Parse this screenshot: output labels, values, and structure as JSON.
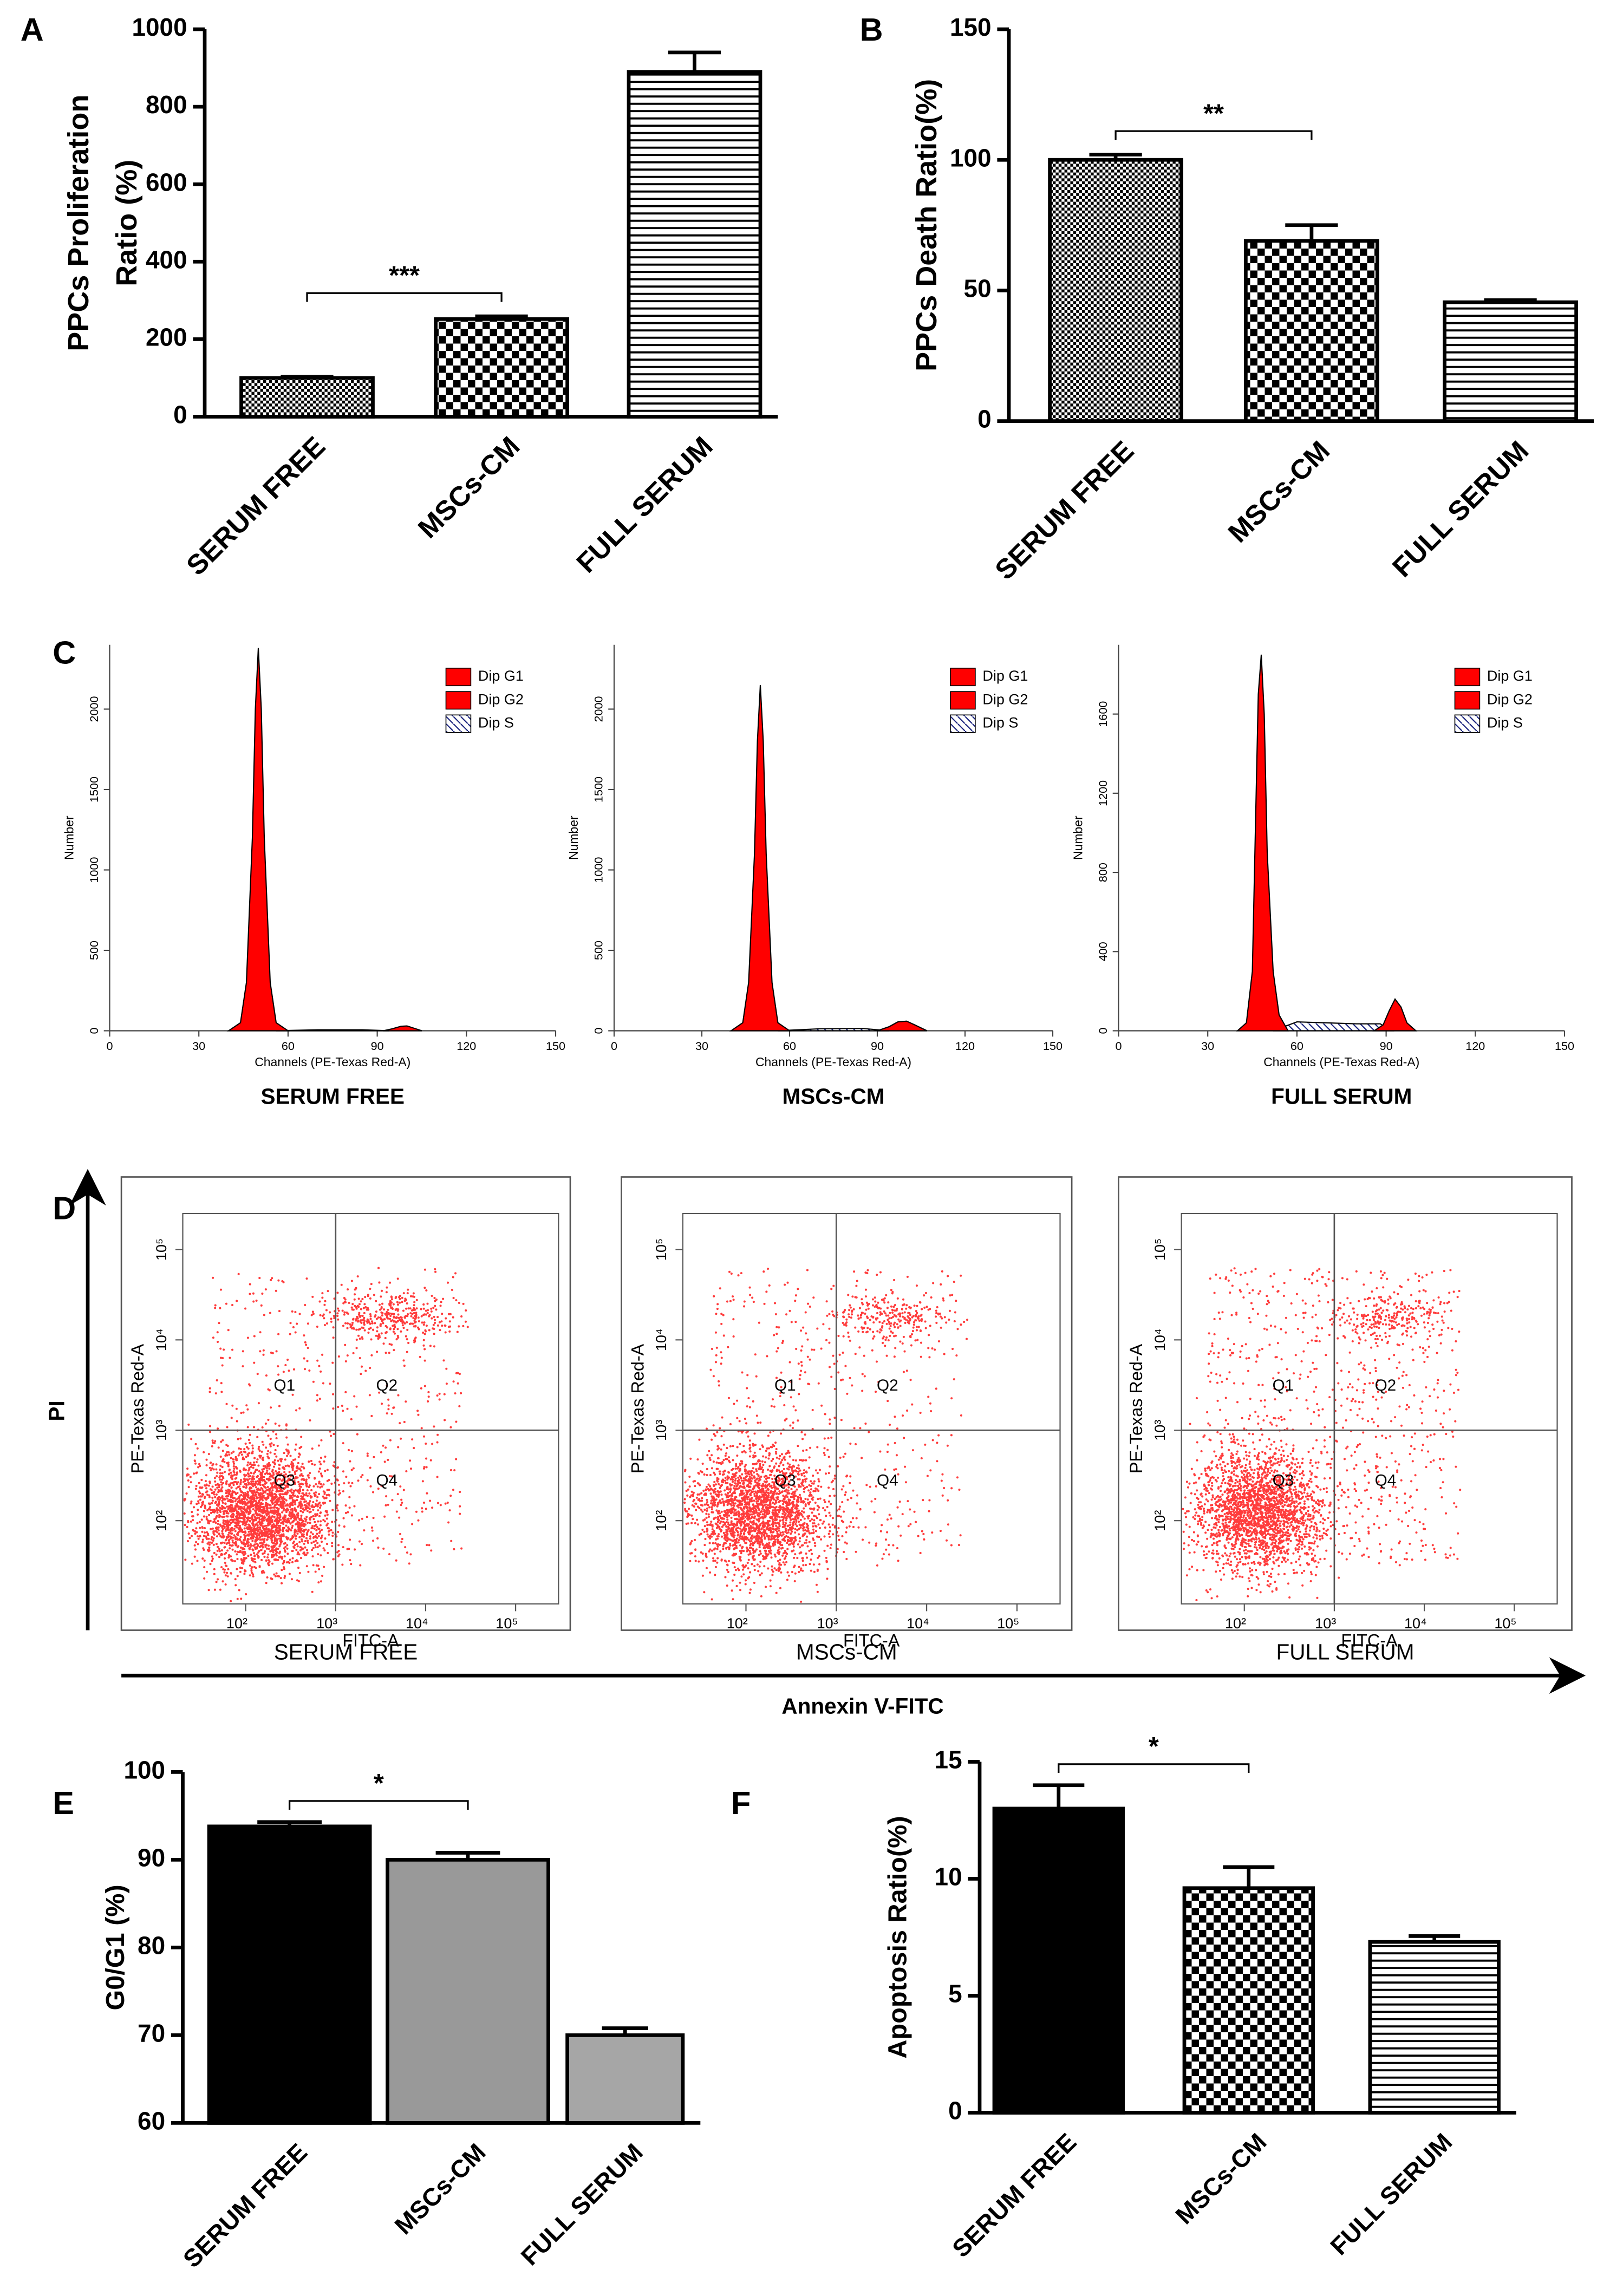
{
  "chart_data": [
    {
      "type": "bar",
      "label": "A",
      "ylabel": [
        "PPCs Proliferation",
        "Ratio (%)"
      ],
      "categories": [
        "SERUM FREE",
        "MSCs-CM",
        "FULL SERUM"
      ],
      "values": [
        100,
        252,
        890
      ],
      "errors": [
        3,
        7,
        50
      ],
      "fills": [
        "crosshatch",
        "checker",
        "hlines"
      ],
      "ylim": [
        0,
        1000
      ],
      "yticks": [
        0,
        200,
        400,
        600,
        800,
        1000
      ],
      "significance": [
        {
          "label": "***",
          "from": 0,
          "to": 1
        }
      ]
    },
    {
      "type": "bar",
      "label": "B",
      "ylabel": [
        "PPCs Death Ratio(%)"
      ],
      "categories": [
        "SERUM FREE",
        "MSCs-CM",
        "FULL SERUM"
      ],
      "values": [
        100,
        69,
        45.5
      ],
      "errors": [
        2,
        6,
        0.8
      ],
      "fills": [
        "crosshatch",
        "checker",
        "hlines"
      ],
      "ylim": [
        0,
        150
      ],
      "yticks": [
        0,
        50,
        100,
        150
      ],
      "significance": [
        {
          "label": "**",
          "from": 0,
          "to": 1
        }
      ]
    },
    {
      "type": "flow_histogram",
      "label": "C",
      "xlabel": "Channels (PE-Texas Red-A)",
      "ylabel": "Number",
      "xlim": [
        0,
        150
      ],
      "xticks": [
        0,
        30,
        60,
        90,
        120,
        150
      ],
      "panels": [
        {
          "caption": "SERUM FREE",
          "ylim": [
            0,
            2400
          ],
          "yticks": [
            0,
            500,
            1000,
            1500,
            2000
          ],
          "series": [
            {
              "name": "Dip G1",
              "color": "#ff0000",
              "x": [
                40,
                44,
                46,
                48,
                49,
                50,
                51,
                52,
                54,
                56,
                60
              ],
              "values": [
                0,
                50,
                300,
                1200,
                2000,
                2380,
                2000,
                1200,
                300,
                50,
                0
              ]
            },
            {
              "name": "Dip G2",
              "color": "#ff0000",
              "x": [
                92,
                95,
                98,
                100,
                102,
                105
              ],
              "values": [
                0,
                12,
                28,
                30,
                18,
                0
              ]
            },
            {
              "name": "Dip S",
              "pattern": "diagonal",
              "x": [
                56,
                70,
                85,
                94
              ],
              "values": [
                0,
                6,
                6,
                0
              ]
            }
          ]
        },
        {
          "caption": "MSCs-CM",
          "ylim": [
            0,
            2400
          ],
          "yticks": [
            0,
            500,
            1000,
            1500,
            2000
          ],
          "series": [
            {
              "name": "Dip G1",
              "color": "#ff0000",
              "x": [
                40,
                44,
                46,
                48,
                49,
                50,
                51,
                52,
                54,
                56,
                60
              ],
              "values": [
                0,
                50,
                300,
                1100,
                1800,
                2150,
                1800,
                1100,
                300,
                50,
                0
              ]
            },
            {
              "name": "Dip G2",
              "color": "#ff0000",
              "x": [
                90,
                94,
                97,
                100,
                103,
                107
              ],
              "values": [
                0,
                25,
                55,
                60,
                35,
                0
              ]
            },
            {
              "name": "Dip S",
              "pattern": "diagonal",
              "x": [
                56,
                70,
                85,
                94
              ],
              "values": [
                0,
                12,
                14,
                0
              ]
            }
          ]
        },
        {
          "caption": "FULL SERUM",
          "ylim": [
            0,
            1950
          ],
          "yticks": [
            0,
            400,
            800,
            1200,
            1600
          ],
          "series": [
            {
              "name": "Dip G1",
              "color": "#ff0000",
              "x": [
                40,
                43,
                45,
                46,
                47,
                48,
                49,
                50,
                52,
                54,
                57
              ],
              "values": [
                0,
                40,
                300,
                1000,
                1700,
                1900,
                1600,
                900,
                300,
                80,
                0
              ]
            },
            {
              "name": "Dip G2",
              "color": "#ff0000",
              "x": [
                86,
                89,
                91,
                93,
                95,
                97,
                100
              ],
              "values": [
                0,
                30,
                100,
                160,
                120,
                40,
                0
              ]
            },
            {
              "name": "Dip S",
              "pattern": "diagonal",
              "x": [
                52,
                60,
                70,
                80,
                88,
                92
              ],
              "values": [
                0,
                45,
                40,
                35,
                35,
                0
              ]
            }
          ]
        }
      ]
    },
    {
      "type": "dotplot",
      "label": "D",
      "xlabel": "FITC-A",
      "ylabel": "PE-Texas Red-A",
      "axis_x": "Annexin V-FITC",
      "axis_y": "PI",
      "log": true,
      "xlim": [
        20,
        300000
      ],
      "ylim": [
        12,
        250000
      ],
      "xticks": [
        {
          "value": 100,
          "label": "10²"
        },
        {
          "value": 1000,
          "label": "10³"
        },
        {
          "value": 10000,
          "label": "10⁴"
        },
        {
          "value": 100000,
          "label": "10⁵"
        }
      ],
      "yticks": [
        {
          "value": 100,
          "label": "10²"
        },
        {
          "value": 1000,
          "label": "10³"
        },
        {
          "value": 10000,
          "label": "10⁴"
        },
        {
          "value": 100000,
          "label": "10⁵"
        }
      ],
      "gate": [
        1000,
        1000
      ],
      "quadrants": [
        "Q1",
        "Q2",
        "Q3",
        "Q4"
      ],
      "panels": [
        {
          "caption": "SERUM FREE"
        },
        {
          "caption": "MSCs-CM"
        },
        {
          "caption": "FULL SERUM"
        }
      ]
    },
    {
      "type": "bar",
      "label": "E",
      "ylabel": [
        "G0/G1 (%)"
      ],
      "categories": [
        "SERUM FREE",
        "MSCs-CM",
        "FULL SERUM"
      ],
      "values": [
        93.8,
        90,
        70
      ],
      "errors": [
        0.5,
        0.8,
        0.8
      ],
      "fills": [
        "#000000",
        "#999999",
        "#a6a6a6"
      ],
      "ylim": [
        60,
        100
      ],
      "yticks": [
        60,
        70,
        80,
        90,
        100
      ],
      "significance": [
        {
          "label": "*",
          "from": 0,
          "to": 1
        }
      ]
    },
    {
      "type": "bar",
      "label": "F",
      "ylabel": [
        "Apoptosis Ratio(%)"
      ],
      "categories": [
        "SERUM FREE",
        "MSCs-CM",
        "FULL SERUM"
      ],
      "values": [
        13,
        9.6,
        7.3
      ],
      "errors": [
        1,
        0.9,
        0.25
      ],
      "fills": [
        "#000000",
        "checker",
        "hlines"
      ],
      "ylim": [
        0,
        15
      ],
      "yticks": [
        0,
        5,
        10,
        15
      ],
      "significance": [
        {
          "label": "*",
          "from": 0,
          "to": 1
        }
      ]
    }
  ]
}
